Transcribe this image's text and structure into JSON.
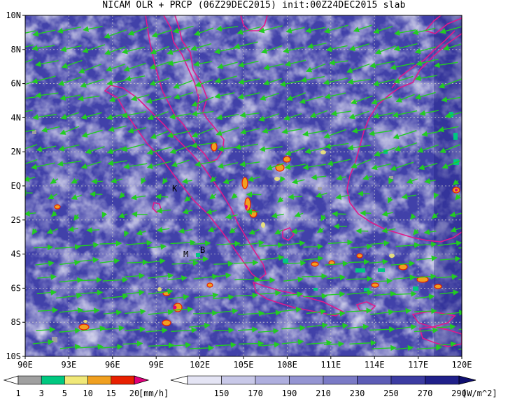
{
  "title": "NICAM OLR + PRCP (06Z29DEC2015) init:00Z24DEC2015 slab",
  "lat_labels": [
    "10N",
    "8N",
    "6N",
    "4N",
    "2N",
    "EQ",
    "2S",
    "4S",
    "6S",
    "8S",
    "10S"
  ],
  "lon_labels": [
    "90E",
    "93E",
    "96E",
    "99E",
    "102E",
    "105E",
    "108E",
    "111E",
    "114E",
    "117E",
    "120E"
  ],
  "place_labels": [
    "K",
    "M",
    "B"
  ],
  "prcp_colorbar": {
    "ticks": [
      "1",
      "3",
      "5",
      "10",
      "15",
      "20"
    ],
    "units": "[mm/h]",
    "colors": [
      "#ffffff",
      "#a0a0a0",
      "#00c880",
      "#f0e878",
      "#f0a020",
      "#e82000",
      "#e0007a"
    ]
  },
  "olr_colorbar": {
    "ticks": [
      "150",
      "170",
      "190",
      "210",
      "230",
      "250",
      "270",
      "290"
    ],
    "units": "[W/m^2]",
    "colors": [
      "#ffffff",
      "#e4e4f4",
      "#c8c8e8",
      "#aeaede",
      "#9494d2",
      "#7a7ac6",
      "#5c5cb6",
      "#3c3ca2",
      "#20208a",
      "#0e0e70"
    ]
  },
  "colors": {
    "coast": "#e0198c",
    "wind": "#22cc22",
    "background": "#4848b0"
  }
}
